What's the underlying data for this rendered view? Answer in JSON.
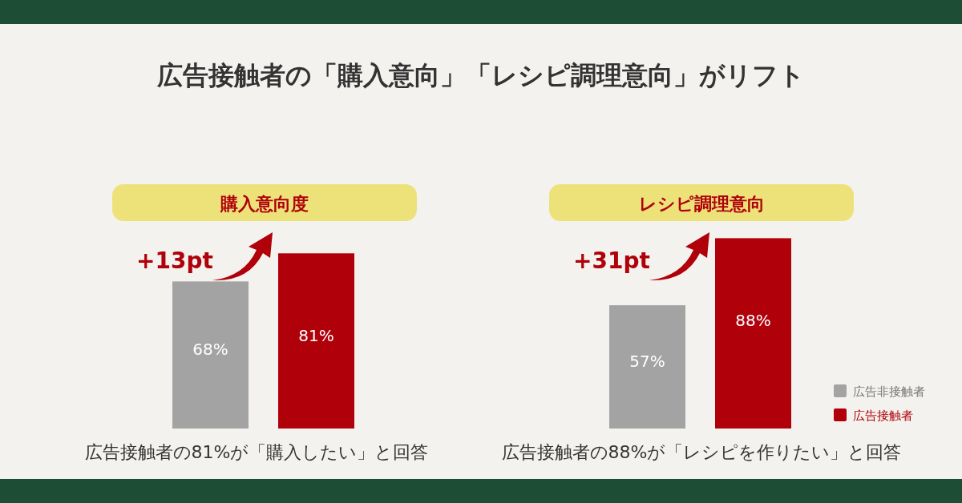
{
  "chart_data": [
    {
      "type": "other",
      "title": "広告接触者の「購入意向」「レシピ調理意向」がリフト"
    },
    {
      "type": "bar",
      "title": "購入意向度",
      "categories": [
        null
      ],
      "series": [
        {
          "color": "#a3a3a3",
          "values": [
            68
          ],
          "value_labels": [
            "68%"
          ]
        },
        {
          "color": "#b0000a",
          "values": [
            81
          ],
          "value_labels": [
            "81%"
          ]
        }
      ],
      "annotations": [
        "+13pt",
        "広告接触者の81%が「購入したい」と回答"
      ]
    },
    {
      "type": "bar",
      "title": "レシピ調理意向",
      "categories": [
        null
      ],
      "legend": "bottom right",
      "series": [
        {
          "name": "広告非接触者",
          "color": "#a3a3a3",
          "values": [
            57
          ],
          "value_labels": [
            "57%"
          ]
        },
        {
          "name": "広告接触者",
          "color": "#b0000a",
          "values": [
            88
          ],
          "value_labels": [
            "88%"
          ]
        }
      ],
      "annotations": [
        "+31pt",
        "広告接触者の88%が「レシピを作りたい」と回答"
      ]
    }
  ]
}
